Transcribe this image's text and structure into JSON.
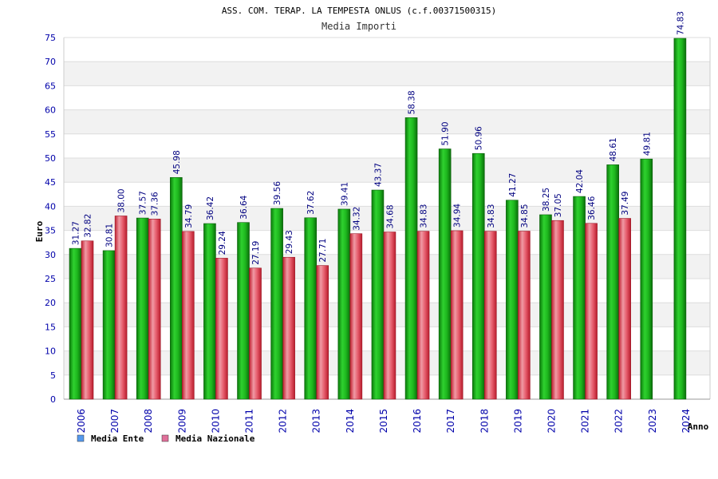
{
  "chart_data": {
    "type": "bar",
    "title": "ASS. COM. TERAP. LA TEMPESTA ONLUS (c.f.00371500315)",
    "subtitle": "Media Importi",
    "xlabel": "Anno",
    "ylabel": "Euro",
    "ylim": [
      0,
      75
    ],
    "yticks": [
      "0",
      "5",
      "10",
      "15",
      "20",
      "25",
      "30",
      "35",
      "40",
      "45",
      "50",
      "55",
      "60",
      "65",
      "70",
      "75"
    ],
    "grid": true,
    "legend_position": "bottom-left",
    "categories": [
      "2006",
      "2007",
      "2008",
      "2009",
      "2010",
      "2011",
      "2012",
      "2013",
      "2014",
      "2015",
      "2016",
      "2017",
      "2018",
      "2019",
      "2020",
      "2021",
      "2022",
      "2023",
      "2024"
    ],
    "series": [
      {
        "name": "Media Ente",
        "color": "#1aa61a",
        "legend_color": "#5599ee",
        "values": [
          31.27,
          30.81,
          37.57,
          45.98,
          36.42,
          36.64,
          39.56,
          37.62,
          39.41,
          43.37,
          58.38,
          51.9,
          50.96,
          41.27,
          38.25,
          42.04,
          48.61,
          49.81,
          74.83
        ],
        "labels": [
          "31.27",
          "30.81",
          "37.57",
          "45.98",
          "36.42",
          "36.64",
          "39.56",
          "37.62",
          "39.41",
          "43.37",
          "58.38",
          "51.90",
          "50.96",
          "41.27",
          "38.25",
          "42.04",
          "48.61",
          "49.81",
          "74.83"
        ]
      },
      {
        "name": "Media Nazionale",
        "color": "#e04a5a",
        "legend_color": "#e0709a",
        "values": [
          32.82,
          38.0,
          37.36,
          34.79,
          29.24,
          27.19,
          29.43,
          27.71,
          34.32,
          34.68,
          34.83,
          34.94,
          34.83,
          34.85,
          37.05,
          36.46,
          37.49,
          null,
          null
        ],
        "labels": [
          "32.82",
          "38.00",
          "37.36",
          "34.79",
          "29.24",
          "27.19",
          "29.43",
          "27.71",
          "34.32",
          "34.68",
          "34.83",
          "34.94",
          "34.83",
          "34.85",
          "37.05",
          "36.46",
          "37.49",
          null,
          null
        ]
      }
    ]
  },
  "colors": {
    "axis_text": "#0000aa",
    "label_text": "#000080",
    "band_alt": "#f2f2f2",
    "grid": "#dddddd"
  }
}
